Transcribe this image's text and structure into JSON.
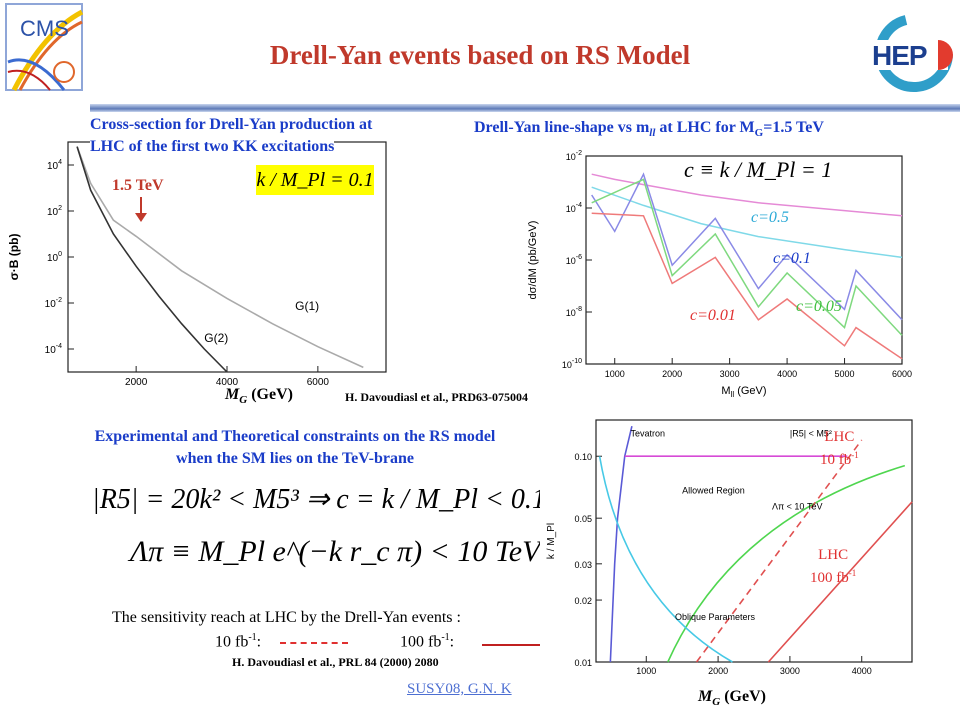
{
  "slide": {
    "title": "Drell-Yan events based on RS Model",
    "footer": "SUSY08, G.N. K"
  },
  "logos": {
    "cms_text": "CMS",
    "hep_text": "HEP"
  },
  "left_chart": {
    "heading_line1": "Cross-section for Drell-Yan production at",
    "heading_line2": "LHC of the first two KK excitations",
    "marker_label": "1.5 TeV",
    "kappa_box": "k / M_Pl = 0.1",
    "ylabel": "σ·B (pb)",
    "xlabel": "M",
    "xlabel_sub": "G",
    "xlabel_unit": " (GeV)",
    "ytick_labels": [
      "10",
      "10",
      "10",
      "10",
      "10"
    ],
    "ytick_exps": [
      "4",
      "2",
      "0",
      "-2",
      "-4"
    ],
    "xtick_labels": [
      "2000",
      "4000",
      "6000"
    ],
    "curve_labels": [
      "G(1)",
      "G(2)"
    ]
  },
  "right_chart": {
    "heading": "Drell-Yan line-shape vs m",
    "heading_sub": "ll",
    "heading_mid": " at LHC for M",
    "heading_sub2": "G",
    "heading_end": "=1.5 TeV",
    "ylabel": "dσ/dM (pb/GeV)",
    "xlabel": "M",
    "xlabel_sub": "ll",
    "xlabel_unit": " (GeV)",
    "ytick_labels": [
      "10",
      "10",
      "10",
      "10",
      "10"
    ],
    "ytick_exps": [
      "-2",
      "-4",
      "-6",
      "-8",
      "-10"
    ],
    "xtick_labels": [
      "1000",
      "2000",
      "3000",
      "4000",
      "5000",
      "6000"
    ],
    "c_eq": "c ≡ k / M_Pl = 1",
    "series_labels": [
      "c=0.5",
      "c=0.1",
      "c=0.05",
      "c=0.01"
    ],
    "reference": "H. Davoudiasl et al., PRD63-075004"
  },
  "constraints": {
    "heading_line1": "Experimental and Theoretical constraints on the RS model",
    "heading_line2": "when the SM lies on the TeV-brane",
    "eq1": "|R5| = 20k² < M5³ ⇒   c = k / M_Pl < 0.1",
    "eq2": "Λπ ≡ M_Pl e^(−k r_c π) < 10 TeV",
    "sensitivity": "The sensitivity reach at LHC by the Drell-Yan events :",
    "lumi_10": "10 fb",
    "lumi_100": "100 fb",
    "lumi_exp": "-1",
    "lumi_sep": ":",
    "reference": "H. Davoudiasl et al., PRL 84 (2000) 2080"
  },
  "bottom_chart": {
    "ylabel": "k / M_Pl",
    "xlabel": "M",
    "xlabel_sub": "G",
    "xlabel_unit": " (GeV)",
    "ytick_labels": [
      "0.10",
      "0.05",
      "0.03",
      "0.02",
      "0.01"
    ],
    "xtick_labels": [
      "1000",
      "2000",
      "3000",
      "4000"
    ],
    "region_labels": [
      "Tevatron",
      "Allowed Region",
      "Λπ < 10 TeV",
      "Oblique Parameters",
      "|R5| < M5²"
    ],
    "lhc10_line1": "LHC",
    "lhc10_line2": "10 fb",
    "lhc100_line1": "LHC",
    "lhc100_line2": "100 fb",
    "lumi_exp": "-1"
  },
  "chart_data": [
    {
      "type": "line",
      "title": "Cross-section for Drell-Yan production at LHC of the first two KK excitations",
      "xlabel": "M_G (GeV)",
      "ylabel": "σ·B (pb)",
      "xlim": [
        500,
        7500
      ],
      "ylim_log10": [
        -5,
        5
      ],
      "series": [
        {
          "name": "G(1)",
          "x": [
            700,
            1000,
            1500,
            2000,
            3000,
            4000,
            5000,
            6000,
            7000
          ],
          "log10_y": [
            4.8,
            3.2,
            1.6,
            0.9,
            -0.6,
            -1.8,
            -2.9,
            -3.9,
            -4.8
          ]
        },
        {
          "name": "G(2)",
          "x": [
            700,
            1000,
            1500,
            2000,
            2500,
            3000,
            3500,
            4000
          ],
          "log10_y": [
            4.8,
            2.9,
            1.0,
            -0.4,
            -1.7,
            -2.9,
            -4.0,
            -5.0
          ]
        }
      ]
    },
    {
      "type": "line",
      "title": "Drell-Yan line-shape vs m_ll at LHC for M_G=1.5 TeV",
      "xlabel": "M_ll (GeV)",
      "ylabel": "dσ/dM (pb/GeV)",
      "xlim": [
        500,
        6000
      ],
      "ylim_log10": [
        -10,
        -2
      ],
      "series": [
        {
          "name": "c=1",
          "x": [
            600,
            1000,
            1500,
            2500,
            3500,
            5000,
            6000
          ],
          "log10_y": [
            -2.7,
            -2.9,
            -3.1,
            -3.5,
            -3.8,
            -4.1,
            -4.3
          ]
        },
        {
          "name": "c=0.5",
          "x": [
            600,
            1500,
            2500,
            3500,
            5000,
            6000
          ],
          "log10_y": [
            -3.2,
            -3.9,
            -4.6,
            -5.1,
            -5.6,
            -5.9
          ]
        },
        {
          "name": "c=0.1",
          "x": [
            600,
            1000,
            1500,
            2000,
            2750,
            3500,
            4000,
            5000,
            5200,
            6000
          ],
          "log10_y": [
            -3.5,
            -4.9,
            -2.7,
            -6.2,
            -4.4,
            -7.1,
            -5.8,
            -7.9,
            -6.4,
            -8.3
          ]
        },
        {
          "name": "c=0.05",
          "x": [
            600,
            1500,
            2000,
            2750,
            3500,
            4000,
            5000,
            5200,
            6000
          ],
          "log10_y": [
            -3.8,
            -2.9,
            -6.6,
            -5.0,
            -7.8,
            -6.5,
            -8.6,
            -7.0,
            -8.9
          ]
        },
        {
          "name": "c=0.01",
          "x": [
            600,
            1500,
            2000,
            2750,
            3500,
            4000,
            5000,
            5200,
            6000
          ],
          "log10_y": [
            -4.2,
            -4.3,
            -6.9,
            -5.9,
            -8.3,
            -7.5,
            -9.3,
            -8.6,
            -9.8
          ]
        }
      ]
    }
  ]
}
